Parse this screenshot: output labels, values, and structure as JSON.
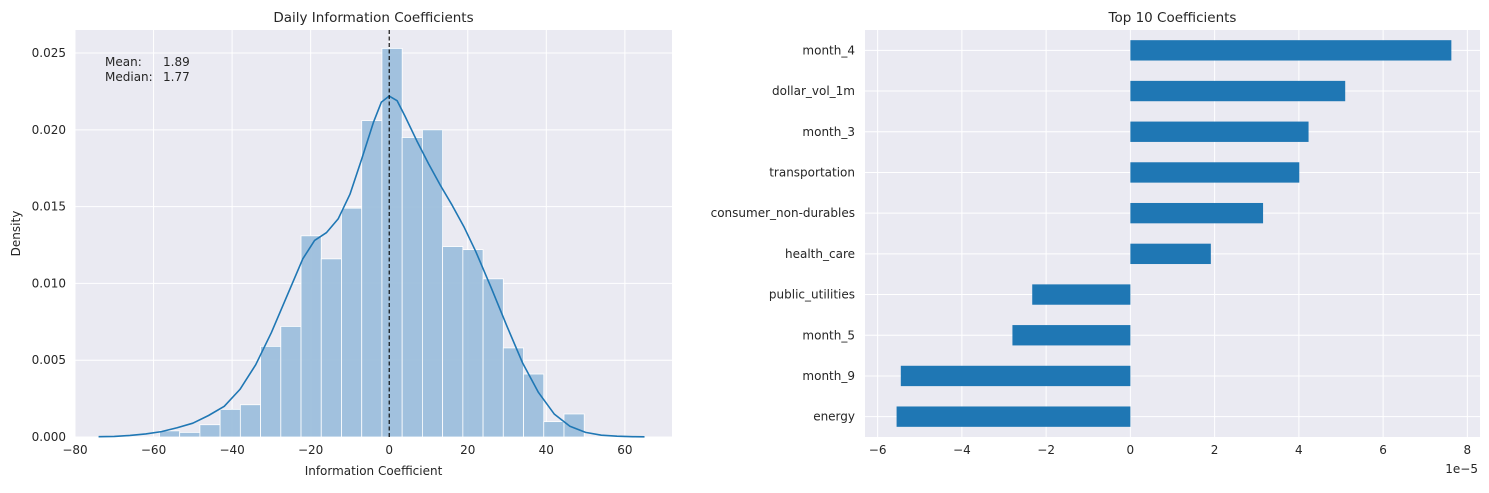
{
  "figure": {
    "background": "#ffffff",
    "axes_background": "#eaeaf2",
    "grid_color": "#ffffff",
    "text_color": "#262626"
  },
  "chart_data": [
    {
      "type": "histogram+kde",
      "title": "Daily Information Coefficients",
      "xlabel": "Information Coefficient",
      "ylabel": "Density",
      "xlim": [
        -80,
        72
      ],
      "ylim": [
        0,
        0.0265
      ],
      "xticks": [
        -80,
        -60,
        -40,
        -20,
        0,
        20,
        40,
        60
      ],
      "xtick_labels": [
        "−80",
        "−60",
        "−40",
        "−20",
        "0",
        "20",
        "40",
        "60"
      ],
      "yticks": [
        0,
        0.005,
        0.01,
        0.015,
        0.02,
        0.025
      ],
      "ytick_labels": [
        "0.000",
        "0.005",
        "0.010",
        "0.015",
        "0.020",
        "0.025"
      ],
      "grid": true,
      "bar_color": "#9dbfdc",
      "line_color": "#1f77b4",
      "bins": {
        "start": -58.5,
        "width": 5.15,
        "density": [
          0.0004,
          0.0003,
          0.0008,
          0.0018,
          0.0021,
          0.0059,
          0.0072,
          0.0131,
          0.0116,
          0.0149,
          0.0206,
          0.0253,
          0.0195,
          0.02,
          0.0124,
          0.0122,
          0.0103,
          0.0058,
          0.0041,
          0.001,
          0.0015
        ]
      },
      "kde": {
        "x": [
          -74,
          -70,
          -66,
          -62,
          -58,
          -54,
          -50,
          -46,
          -42,
          -38,
          -34,
          -30,
          -26,
          -22,
          -19,
          -16,
          -13,
          -10,
          -7,
          -4,
          -2,
          0,
          2,
          4,
          7,
          10,
          13,
          16,
          19,
          22,
          26,
          30,
          34,
          38,
          42,
          46,
          50,
          54,
          58,
          62,
          65
        ],
        "y": [
          2e-05,
          4e-05,
          0.0001,
          0.0002,
          0.00035,
          0.0006,
          0.0009,
          0.0014,
          0.002,
          0.0031,
          0.0047,
          0.0068,
          0.0092,
          0.0116,
          0.0128,
          0.0133,
          0.0142,
          0.0158,
          0.0181,
          0.0205,
          0.0218,
          0.0222,
          0.0219,
          0.0209,
          0.0193,
          0.0178,
          0.0164,
          0.0151,
          0.0137,
          0.0121,
          0.0097,
          0.0072,
          0.0048,
          0.0029,
          0.0015,
          0.0007,
          0.0003,
          0.00012,
          5e-05,
          2e-05,
          1e-05
        ]
      },
      "vline": {
        "x": 0,
        "style": "dashed",
        "color": "#000000"
      },
      "annotation": {
        "mean_label": "Mean:",
        "mean_value": "1.89",
        "median_label": "Median:",
        "median_value": "1.77"
      }
    },
    {
      "type": "barh",
      "title": "Top 10 Coefficients",
      "categories": [
        "month_4",
        "dollar_vol_1m",
        "month_3",
        "transportation",
        "consumer_non-durables",
        "health_care",
        "public_utilities",
        "month_5",
        "month_9",
        "energy"
      ],
      "values": [
        7.62,
        5.1,
        4.23,
        4.01,
        3.15,
        1.91,
        -2.33,
        -2.8,
        -5.45,
        -5.55
      ],
      "value_scale_label": "1e−5",
      "xlim": [
        -6.3,
        8.3
      ],
      "xticks": [
        -6,
        -4,
        -2,
        0,
        2,
        4,
        6,
        8
      ],
      "xtick_labels": [
        "−6",
        "−4",
        "−2",
        "0",
        "2",
        "4",
        "6",
        "8"
      ],
      "grid": true,
      "bar_color": "#1f77b4"
    }
  ]
}
